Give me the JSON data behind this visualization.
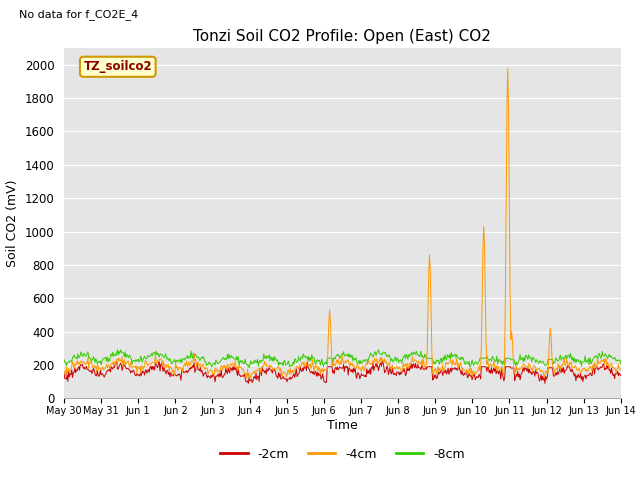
{
  "title": "Tonzi Soil CO2 Profile: Open (East) CO2",
  "no_data_text": "No data for f_CO2E_4",
  "ylabel": "Soil CO2 (mV)",
  "xlabel": "Time",
  "legend_label": "TZ_soilco2",
  "ylim": [
    0,
    2100
  ],
  "yticks": [
    0,
    200,
    400,
    600,
    800,
    1000,
    1200,
    1400,
    1600,
    1800,
    2000
  ],
  "xtick_labels": [
    "May 30",
    "May 31",
    "Jun 1",
    "Jun 2",
    "Jun 3",
    "Jun 4",
    "Jun 5",
    "Jun 6",
    "Jun 7",
    "Jun 8",
    "Jun 9",
    "Jun 10",
    "Jun 11",
    "Jun 12",
    "Jun 13",
    "Jun 14"
  ],
  "series_colors": {
    "m2cm": "#cc0000",
    "m4cm": "#ff9900",
    "m8cm": "#33cc00"
  },
  "title_fontsize": 11,
  "axis_fontsize": 9,
  "legend_box_color": "#ffffcc",
  "legend_box_edge": "#cc9900",
  "spike_locs": [
    7.15,
    9.85,
    11.3,
    11.95,
    12.05,
    13.1,
    13.55
  ],
  "spike_vals": [
    530,
    860,
    1030,
    1980,
    400,
    420,
    220
  ]
}
